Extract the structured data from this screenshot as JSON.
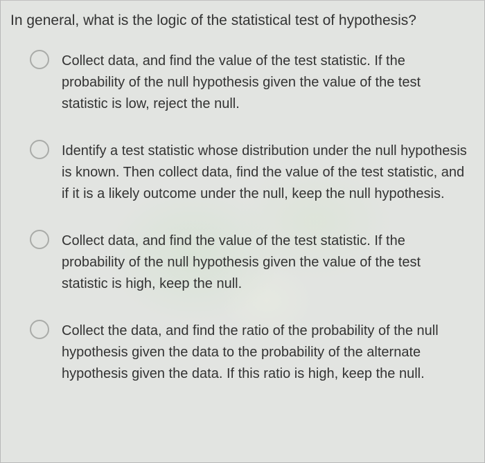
{
  "question": "In general, what is the logic of the statistical test of hypothesis?",
  "options": [
    {
      "text": "Collect data, and find the value of the test statistic. If the probability of the null hypothesis given the value of the test statistic is low, reject the null."
    },
    {
      "text": "Identify a test statistic whose distribution under the null hypothesis is known. Then collect data, find the value of the test statistic, and if it is a likely outcome under the null, keep the null hypothesis."
    },
    {
      "text": "Collect data, and find the value of the test statistic. If the probability of the null hypothesis given the value of the test statistic is high, keep the null."
    },
    {
      "text": "Collect the data, and find the ratio of the probability of the null hypothesis given the data to the probability of the alternate hypothesis given the data. If this ratio is high, keep the null."
    }
  ],
  "colors": {
    "background": "#e2e4e1",
    "text": "#333333",
    "radio_border": "#a9aba8",
    "container_border": "#b8b8b8"
  },
  "typography": {
    "question_fontsize": 21,
    "option_fontsize": 20,
    "font_family": "Arial"
  }
}
